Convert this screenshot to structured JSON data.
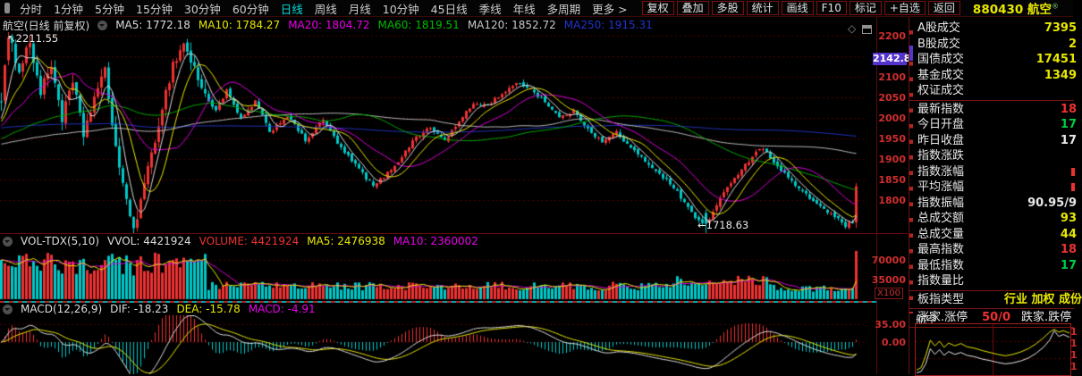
{
  "toolbar": {
    "periods": [
      {
        "label": "分时",
        "active": false
      },
      {
        "label": "1分钟",
        "active": false
      },
      {
        "label": "5分钟",
        "active": false
      },
      {
        "label": "15分钟",
        "active": false
      },
      {
        "label": "30分钟",
        "active": false
      },
      {
        "label": "60分钟",
        "active": false
      },
      {
        "label": "日线",
        "active": true
      },
      {
        "label": "周线",
        "active": false
      },
      {
        "label": "月线",
        "active": false
      },
      {
        "label": "10分钟",
        "active": false
      },
      {
        "label": "45日线",
        "active": false
      },
      {
        "label": "季线",
        "active": false
      },
      {
        "label": "年线",
        "active": false
      },
      {
        "label": "多周期",
        "active": false
      },
      {
        "label": "更多 >",
        "active": false
      }
    ],
    "tools": [
      "复权",
      "叠加",
      "多股",
      "统计",
      "画线",
      "F10",
      "标记",
      "+自选",
      "返回"
    ],
    "stock_code": "880430",
    "stock_name": "航空",
    "stock_mark": "®"
  },
  "main_chart": {
    "title": "航空(日线 前复权)",
    "legend": [
      {
        "label": "MA5:",
        "value": "1772.18",
        "color": "#dcdcdc"
      },
      {
        "label": "MA10:",
        "value": "1784.27",
        "color": "#e8e800"
      },
      {
        "label": "MA20:",
        "value": "1804.72",
        "color": "#e800e8"
      },
      {
        "label": "MA60:",
        "value": "1819.51",
        "color": "#00bb00"
      },
      {
        "label": "MA120:",
        "value": "1852.72",
        "color": "#c8c8c8"
      },
      {
        "label": "MA250:",
        "value": "1915.31",
        "color": "#2233cc"
      }
    ],
    "annotations": {
      "high_arrow": "↖",
      "high": "2211.55",
      "low_arrow": "←",
      "low": "1718.63"
    },
    "axis": {
      "ticks": [
        2200,
        2150,
        2100,
        2050,
        2000,
        1950,
        1900,
        1850,
        1800
      ],
      "tag": "2142.8"
    },
    "icons": {
      "diamond": "◇"
    }
  },
  "volume_pane": {
    "legend": [
      {
        "label": "VOL-TDX(5,10)",
        "value": "",
        "color": "#dcdcdc"
      },
      {
        "label": "VVOL:",
        "value": "4421924",
        "color": "#dcdcdc"
      },
      {
        "label": "VOLUME:",
        "value": "4421924",
        "color": "#ee3232"
      },
      {
        "label": "MA5:",
        "value": "2476938",
        "color": "#e8e800"
      },
      {
        "label": "MA10:",
        "value": "2360002",
        "color": "#e800e8"
      }
    ],
    "axis": [
      "70000",
      "35000"
    ],
    "unit": "X100"
  },
  "macd_pane": {
    "legend": [
      {
        "label": "MACD(12,26,9)",
        "value": "",
        "color": "#dcdcdc"
      },
      {
        "label": "DIF:",
        "value": "-18.23",
        "color": "#dcdcdc"
      },
      {
        "label": "DEA:",
        "value": "-15.78",
        "color": "#e8e800"
      },
      {
        "label": "MACD:",
        "value": "-4.91",
        "color": "#e800e8"
      }
    ],
    "axis": [
      "35.00",
      "0.00"
    ]
  },
  "right_panel": {
    "rows": [
      {
        "label": "A股成交",
        "value": "7395",
        "color": "#e8e800"
      },
      {
        "label": "B股成交",
        "value": "2",
        "color": "#e8e800"
      },
      {
        "label": "国债成交",
        "value": "17451",
        "color": "#e8e800"
      },
      {
        "label": "基金成交",
        "value": "1349",
        "color": "#e8e800"
      },
      {
        "label": "权证成交",
        "value": "",
        "color": "#e8e800"
      },
      {
        "type": "sep"
      },
      {
        "label": "最新指数",
        "value": "18",
        "color": "#ee3232"
      },
      {
        "label": "今日开盘",
        "value": "17",
        "color": "#00cc44"
      },
      {
        "label": "昨日收盘",
        "value": "17",
        "color": "#e8e8e8"
      },
      {
        "label": "指数涨跌",
        "value": "",
        "color": "#ee3232"
      },
      {
        "label": "指数涨幅",
        "value": "",
        "color": "#ee3232",
        "sliver": true
      },
      {
        "label": "平均涨幅",
        "value": "",
        "color": "#ee3232",
        "sliver": true
      },
      {
        "label": "指数振幅",
        "value": "90.95/9",
        "color": "#e8e8e8"
      },
      {
        "label": "总成交额",
        "value": "93",
        "color": "#e8e800"
      },
      {
        "label": "总成交量",
        "value": "44",
        "color": "#e8e800"
      },
      {
        "label": "最高指数",
        "value": "18",
        "color": "#ee3232"
      },
      {
        "label": "最低指数",
        "value": "17",
        "color": "#00cc44"
      },
      {
        "label": "指数量比",
        "value": "",
        "color": "#e8e8e8"
      },
      {
        "type": "sep"
      },
      {
        "label": "板指类型",
        "value": "行业 加权 成份",
        "color": "#e8e800",
        "clip": true
      },
      {
        "type": "sep"
      },
      {
        "type": "pair",
        "label": "涨家.涨停",
        "value": "50/0",
        "label2": "跌家.跌停"
      },
      {
        "type": "sep"
      }
    ],
    "mini_chart": {
      "title": "航空",
      "edge_labels": [
        "1",
        "1",
        "1",
        "1"
      ]
    }
  },
  "chart_data": {
    "type": "candlestick+volume+macd",
    "n_candles": 240,
    "price_axis": {
      "ticks": [
        2200,
        2150,
        2100,
        2050,
        2000,
        1950,
        1900,
        1850,
        1800
      ],
      "current_tag": 2142.8
    },
    "key_points": {
      "period_high": 2211.55,
      "period_low": 1718.63,
      "last_close": 1833
    },
    "moving_averages": {
      "MA5": 1772.18,
      "MA10": 1784.27,
      "MA20": 1804.72,
      "MA60": 1819.51,
      "MA120": 1852.72,
      "MA250": 1915.31
    },
    "volume": {
      "VVOL": 4421924,
      "VOLUME": 4421924,
      "MA5": 2476938,
      "MA10": 2360002,
      "axis_ticks": [
        70000,
        35000
      ],
      "unit_scale": "X100"
    },
    "macd": {
      "params": [
        12,
        26,
        9
      ],
      "DIF": -18.23,
      "DEA": -15.78,
      "MACD": -4.91,
      "axis_ticks": [
        35.0,
        0.0
      ]
    },
    "close_anchors": [
      [
        0,
        2050
      ],
      [
        2,
        2195
      ],
      [
        5,
        2120
      ],
      [
        8,
        2185
      ],
      [
        11,
        2060
      ],
      [
        14,
        2130
      ],
      [
        17,
        2000
      ],
      [
        20,
        2085
      ],
      [
        23,
        1960
      ],
      [
        26,
        2050
      ],
      [
        29,
        2110
      ],
      [
        32,
        1930
      ],
      [
        35,
        1790
      ],
      [
        37,
        1733
      ],
      [
        40,
        1830
      ],
      [
        44,
        1990
      ],
      [
        48,
        2130
      ],
      [
        51,
        2180
      ],
      [
        54,
        2120
      ],
      [
        57,
        2050
      ],
      [
        60,
        2020
      ],
      [
        63,
        2065
      ],
      [
        67,
        1995
      ],
      [
        71,
        2040
      ],
      [
        75,
        1965
      ],
      [
        80,
        2005
      ],
      [
        85,
        1945
      ],
      [
        90,
        1995
      ],
      [
        95,
        1925
      ],
      [
        100,
        1875
      ],
      [
        104,
        1833
      ],
      [
        108,
        1865
      ],
      [
        112,
        1905
      ],
      [
        116,
        1955
      ],
      [
        120,
        1975
      ],
      [
        124,
        1945
      ],
      [
        128,
        1990
      ],
      [
        132,
        2035
      ],
      [
        136,
        2030
      ],
      [
        140,
        2060
      ],
      [
        145,
        2085
      ],
      [
        148,
        2070
      ],
      [
        152,
        2040
      ],
      [
        156,
        2000
      ],
      [
        160,
        2015
      ],
      [
        164,
        1975
      ],
      [
        168,
        1940
      ],
      [
        172,
        1965
      ],
      [
        176,
        1925
      ],
      [
        180,
        1895
      ],
      [
        184,
        1865
      ],
      [
        188,
        1830
      ],
      [
        191,
        1795
      ],
      [
        194,
        1755
      ],
      [
        197,
        1740
      ],
      [
        200,
        1785
      ],
      [
        204,
        1845
      ],
      [
        208,
        1885
      ],
      [
        212,
        1928
      ],
      [
        215,
        1905
      ],
      [
        218,
        1872
      ],
      [
        221,
        1845
      ],
      [
        224,
        1818
      ],
      [
        227,
        1798
      ],
      [
        230,
        1778
      ],
      [
        233,
        1758
      ],
      [
        236,
        1738
      ],
      [
        238,
        1745
      ],
      [
        239,
        1833
      ]
    ],
    "colors": {
      "up": "#ee3232",
      "down": "#00c8c8",
      "grid": "#4c0000",
      "axis_text": "#cf2e2e",
      "tag_bg": "#5433cc",
      "ma5": "#dcdcdc",
      "ma10": "#e8e800",
      "ma20": "#dd00dd",
      "ma60": "#00aa00",
      "ma120": "#bbbbbb",
      "ma250": "#2233bb",
      "vol_ma5": "#e8e800",
      "vol_ma10": "#dd00dd",
      "dif": "#dcdcdc",
      "dea": "#e8e800"
    },
    "mini_chart": {
      "lines": [
        {
          "name": "index",
          "color": "#e8e800",
          "points": [
            [
              0,
              0.93
            ],
            [
              0.03,
              0.88
            ],
            [
              0.06,
              0.62
            ],
            [
              0.09,
              0.3
            ],
            [
              0.12,
              0.42
            ],
            [
              0.15,
              0.32
            ],
            [
              0.18,
              0.45
            ],
            [
              0.21,
              0.36
            ],
            [
              0.25,
              0.42
            ],
            [
              0.29,
              0.37
            ],
            [
              0.33,
              0.44
            ],
            [
              0.38,
              0.47
            ],
            [
              0.43,
              0.52
            ],
            [
              0.48,
              0.56
            ],
            [
              0.53,
              0.6
            ],
            [
              0.58,
              0.63
            ],
            [
              0.63,
              0.6
            ],
            [
              0.68,
              0.55
            ],
            [
              0.73,
              0.48
            ],
            [
              0.78,
              0.38
            ],
            [
              0.83,
              0.25
            ],
            [
              0.87,
              0.13
            ],
            [
              0.9,
              0.07
            ],
            [
              0.93,
              0.13
            ],
            [
              0.96,
              0.1
            ],
            [
              1,
              0.15
            ]
          ]
        },
        {
          "name": "average",
          "color": "#e8e8e8",
          "points": [
            [
              0,
              0.99
            ],
            [
              0.03,
              0.96
            ],
            [
              0.06,
              0.8
            ],
            [
              0.09,
              0.48
            ],
            [
              0.12,
              0.6
            ],
            [
              0.15,
              0.5
            ],
            [
              0.18,
              0.62
            ],
            [
              0.21,
              0.54
            ],
            [
              0.25,
              0.6
            ],
            [
              0.29,
              0.56
            ],
            [
              0.33,
              0.62
            ],
            [
              0.38,
              0.65
            ],
            [
              0.43,
              0.7
            ],
            [
              0.48,
              0.73
            ],
            [
              0.53,
              0.77
            ],
            [
              0.58,
              0.8
            ],
            [
              0.63,
              0.78
            ],
            [
              0.68,
              0.74
            ],
            [
              0.73,
              0.68
            ],
            [
              0.78,
              0.58
            ],
            [
              0.83,
              0.45
            ],
            [
              0.87,
              0.3
            ],
            [
              0.9,
              0.1
            ],
            [
              0.93,
              0.22
            ],
            [
              0.96,
              0.18
            ],
            [
              1,
              0.24
            ]
          ]
        }
      ]
    }
  }
}
